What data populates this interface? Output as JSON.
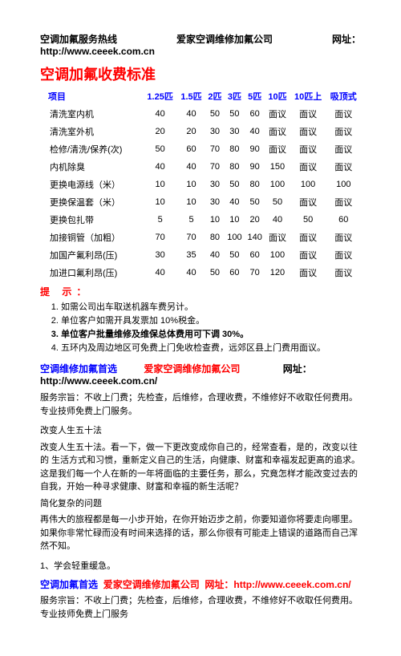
{
  "header": {
    "left": "空调加氟服务热线",
    "center": "爱家空调维修加氟公司",
    "right": "网址：",
    "url": "http://www.ceeek.com.cn"
  },
  "title": "空调加氟收费标准",
  "table": {
    "headers": [
      "项目",
      "1.25匹",
      "1.5匹",
      "2匹",
      "3匹",
      "5匹",
      "10匹",
      "10匹上",
      "吸顶式"
    ],
    "rows": [
      [
        "清洗室内机",
        "40",
        "40",
        "50",
        "50",
        "60",
        "面议",
        "面议",
        "面议"
      ],
      [
        "清洗室外机",
        "20",
        "20",
        "30",
        "30",
        "40",
        "面议",
        "面议",
        "面议"
      ],
      [
        "检修/清洗/保养(次)",
        "50",
        "60",
        "70",
        "80",
        "90",
        "面议",
        "面议",
        "面议"
      ],
      [
        "内机除臭",
        "40",
        "40",
        "70",
        "80",
        "90",
        "150",
        "面议",
        "面议"
      ],
      [
        "更换电源线（米）",
        "10",
        "10",
        "30",
        "50",
        "80",
        "100",
        "100",
        "100"
      ],
      [
        "更换保温套（米）",
        "10",
        "10",
        "30",
        "40",
        "50",
        "50",
        "面议",
        "面议"
      ],
      [
        "更换包扎带",
        "5",
        "5",
        "10",
        "10",
        "20",
        "40",
        "50",
        "60"
      ],
      [
        "加接铜管（加粗）",
        "70",
        "70",
        "80",
        "100",
        "140",
        "面议",
        "面议",
        "面议"
      ],
      [
        "加国产氟利昂(压)",
        "30",
        "35",
        "40",
        "50",
        "60",
        "100",
        "面议",
        "面议"
      ],
      [
        "加进口氟利昂(压)",
        "40",
        "40",
        "50",
        "60",
        "70",
        "120",
        "面议",
        "面议"
      ]
    ]
  },
  "tipsTitle": "提 示：",
  "tips": [
    "如需公司出车取送机器车费另计。",
    "单位客户如需开具发票加 10%税金。",
    "单位客户批量维修及维保总体费用可下调 30%。",
    "五环内及周边地区可免费上门免收检查费，远郊区县上门费用面议。"
  ],
  "line2": {
    "blue": "空调维修加氟首选",
    "red": "爱家空调维修加氟公司",
    "tail": "网址：",
    "url": "http://www.ceeek.com.cn/"
  },
  "para1": "服务宗旨：不收上门费；先检查，后维修，合理收费，不维修好不收取任何费用。专业技师免费上门服务。",
  "heading2": "改变人生五十法",
  "para2": "改变人生五十法。看一下，做一下更改变成你自己的，经常查看，是的，改变以往的 生活方式和习惯，重新定义自己的生活，向健康、财富和幸福发起更高的追求。这是我们每一个人在新的一年将面临的主要任务，那么，究竟怎样才能改变过去的自我，开始一种寻求健康、财富和幸福的新生活呢？",
  "para3": "简化复杂的问题",
  "para4": "再伟大的旅程都是每一小步开始，在你开始迈步之前，你要知道你将要走向哪里。如果你非常忙碌而没有时间来选择的话，那么你很有可能走上错误的道路而自己浑然不知。",
  "para5": "1、学会轻重缓急。",
  "footer": {
    "blue": "空调加氟首选",
    "red1": "爱家空调维修加氟公司",
    "red2": "网址：http://www.ceeek.com.cn/"
  },
  "footerPara": "服务宗旨：不收上门费；先检查，后维修，合理收费，不维修好不收取任何费用。专业技师免费上门服务"
}
